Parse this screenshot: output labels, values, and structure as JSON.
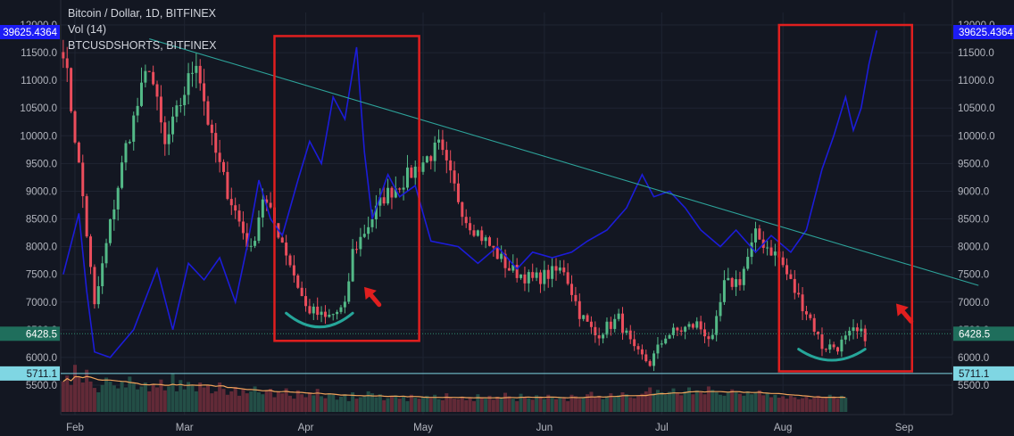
{
  "header": {
    "title": "Bitcoin / Dollar, 1D, BITFINEX",
    "vol_label": "Vol (14)",
    "overlay_label": "BTCUSDSHORTS, BITFINEX"
  },
  "colors": {
    "background": "#131722",
    "grid": "#1f2432",
    "up_candle": "#53b987",
    "down_candle": "#eb4d5c",
    "shorts_line": "#1c1cd9",
    "trendline": "#2da39a",
    "volume_ma": "#f0a35b",
    "highlight_box": "#e01f1f",
    "arrow": "#e01f1f",
    "arc": "#26a69a",
    "price_tag": "#1f6e5c",
    "level_tag": "#7fd6e3",
    "overlay_tag": "#1c1cf5"
  },
  "chart_data": {
    "type": "candlestick",
    "symbol": "BTCUSD",
    "exchange": "BITFINEX",
    "interval": "1D",
    "x_tick_labels": [
      "Feb",
      "Mar",
      "Apr",
      "May",
      "Jun",
      "Jul",
      "Aug",
      "Sep"
    ],
    "y_tick_labels": [
      "12000.0",
      "11500.0",
      "11000.0",
      "10500.0",
      "10000.0",
      "9500.0",
      "9000.0",
      "8500.0",
      "8000.0",
      "7500.0",
      "7000.0",
      "6500.0",
      "6000.0",
      "5500.0"
    ],
    "ylim": [
      5000,
      12200
    ],
    "grid": true,
    "price_tags": {
      "last_price": "6428.5",
      "support_level": "5711.1",
      "shorts_value": "39625.4364"
    },
    "candle_anchors": [
      {
        "date": "2018-01-29",
        "price": 11600
      },
      {
        "date": "2018-02-03",
        "price": 8900
      },
      {
        "date": "2018-02-06",
        "price": 6900
      },
      {
        "date": "2018-02-10",
        "price": 8400
      },
      {
        "date": "2018-02-14",
        "price": 9800
      },
      {
        "date": "2018-02-20",
        "price": 11300
      },
      {
        "date": "2018-02-24",
        "price": 9800
      },
      {
        "date": "2018-03-04",
        "price": 11400
      },
      {
        "date": "2018-03-08",
        "price": 9900
      },
      {
        "date": "2018-03-12",
        "price": 9000
      },
      {
        "date": "2018-03-18",
        "price": 7900
      },
      {
        "date": "2018-03-21",
        "price": 8900
      },
      {
        "date": "2018-03-26",
        "price": 8100
      },
      {
        "date": "2018-04-01",
        "price": 6900
      },
      {
        "date": "2018-04-06",
        "price": 6700
      },
      {
        "date": "2018-04-11",
        "price": 6900
      },
      {
        "date": "2018-04-13",
        "price": 7900
      },
      {
        "date": "2018-04-21",
        "price": 8900
      },
      {
        "date": "2018-04-26",
        "price": 9200
      },
      {
        "date": "2018-05-05",
        "price": 9800
      },
      {
        "date": "2018-05-12",
        "price": 8500
      },
      {
        "date": "2018-05-17",
        "price": 8100
      },
      {
        "date": "2018-05-23",
        "price": 7600
      },
      {
        "date": "2018-05-29",
        "price": 7400
      },
      {
        "date": "2018-06-06",
        "price": 7600
      },
      {
        "date": "2018-06-10",
        "price": 6800
      },
      {
        "date": "2018-06-14",
        "price": 6400
      },
      {
        "date": "2018-06-20",
        "price": 6700
      },
      {
        "date": "2018-06-24",
        "price": 6100
      },
      {
        "date": "2018-06-28",
        "price": 5900
      },
      {
        "date": "2018-07-02",
        "price": 6400
      },
      {
        "date": "2018-07-10",
        "price": 6600
      },
      {
        "date": "2018-07-14",
        "price": 6300
      },
      {
        "date": "2018-07-17",
        "price": 7300
      },
      {
        "date": "2018-07-21",
        "price": 7400
      },
      {
        "date": "2018-07-25",
        "price": 8200
      },
      {
        "date": "2018-07-31",
        "price": 7800
      },
      {
        "date": "2018-08-04",
        "price": 7200
      },
      {
        "date": "2018-08-08",
        "price": 6700
      },
      {
        "date": "2018-08-11",
        "price": 6200
      },
      {
        "date": "2018-08-15",
        "price": 6200
      },
      {
        "date": "2018-08-19",
        "price": 6450
      },
      {
        "date": "2018-08-22",
        "price": 6400
      }
    ],
    "series": [
      {
        "name": "BTCUSDSHORTS, BITFINEX",
        "axis_max_label": "39625.4364",
        "points": [
          {
            "date": "2018-01-29",
            "y": 7500
          },
          {
            "date": "2018-02-02",
            "y": 8600
          },
          {
            "date": "2018-02-04",
            "y": 7200
          },
          {
            "date": "2018-02-06",
            "y": 6100
          },
          {
            "date": "2018-02-10",
            "y": 6000
          },
          {
            "date": "2018-02-16",
            "y": 6500
          },
          {
            "date": "2018-02-22",
            "y": 7600
          },
          {
            "date": "2018-02-26",
            "y": 6500
          },
          {
            "date": "2018-03-02",
            "y": 7700
          },
          {
            "date": "2018-03-06",
            "y": 7400
          },
          {
            "date": "2018-03-10",
            "y": 7800
          },
          {
            "date": "2018-03-14",
            "y": 7000
          },
          {
            "date": "2018-03-17",
            "y": 8000
          },
          {
            "date": "2018-03-20",
            "y": 9200
          },
          {
            "date": "2018-03-23",
            "y": 8500
          },
          {
            "date": "2018-03-26",
            "y": 8200
          },
          {
            "date": "2018-03-30",
            "y": 9200
          },
          {
            "date": "2018-04-02",
            "y": 9900
          },
          {
            "date": "2018-04-05",
            "y": 9500
          },
          {
            "date": "2018-04-08",
            "y": 10700
          },
          {
            "date": "2018-04-11",
            "y": 10300
          },
          {
            "date": "2018-04-14",
            "y": 11600
          },
          {
            "date": "2018-04-16",
            "y": 9700
          },
          {
            "date": "2018-04-18",
            "y": 8500
          },
          {
            "date": "2018-04-22",
            "y": 9300
          },
          {
            "date": "2018-04-25",
            "y": 8900
          },
          {
            "date": "2018-04-29",
            "y": 9100
          },
          {
            "date": "2018-05-03",
            "y": 8100
          },
          {
            "date": "2018-05-10",
            "y": 8000
          },
          {
            "date": "2018-05-15",
            "y": 7700
          },
          {
            "date": "2018-05-20",
            "y": 8000
          },
          {
            "date": "2018-05-25",
            "y": 7600
          },
          {
            "date": "2018-05-29",
            "y": 7900
          },
          {
            "date": "2018-06-03",
            "y": 7800
          },
          {
            "date": "2018-06-08",
            "y": 7900
          },
          {
            "date": "2018-06-12",
            "y": 8100
          },
          {
            "date": "2018-06-17",
            "y": 8300
          },
          {
            "date": "2018-06-22",
            "y": 8700
          },
          {
            "date": "2018-06-26",
            "y": 9300
          },
          {
            "date": "2018-06-29",
            "y": 8900
          },
          {
            "date": "2018-07-03",
            "y": 9000
          },
          {
            "date": "2018-07-07",
            "y": 8700
          },
          {
            "date": "2018-07-11",
            "y": 8300
          },
          {
            "date": "2018-07-16",
            "y": 8000
          },
          {
            "date": "2018-07-20",
            "y": 8300
          },
          {
            "date": "2018-07-25",
            "y": 7900
          },
          {
            "date": "2018-07-29",
            "y": 8200
          },
          {
            "date": "2018-08-03",
            "y": 7900
          },
          {
            "date": "2018-08-07",
            "y": 8300
          },
          {
            "date": "2018-08-11",
            "y": 9400
          },
          {
            "date": "2018-08-14",
            "y": 10000
          },
          {
            "date": "2018-08-17",
            "y": 10700
          },
          {
            "date": "2018-08-19",
            "y": 10100
          },
          {
            "date": "2018-08-21",
            "y": 10500
          },
          {
            "date": "2018-08-23",
            "y": 11300
          },
          {
            "date": "2018-08-25",
            "y": 11900
          }
        ]
      }
    ],
    "trendline": [
      {
        "date": "2018-02-20",
        "y": 11750
      },
      {
        "date": "2018-09-20",
        "y": 7300
      }
    ],
    "support_line_value": 5711.1,
    "highlight_boxes": [
      {
        "from": "2018-03-24",
        "to": "2018-04-30",
        "y_from": 6300,
        "y_to": 11800
      },
      {
        "from": "2018-07-31",
        "to": "2018-09-03",
        "y_from": 5750,
        "y_to": 12000
      }
    ],
    "rounded_bottoms": [
      {
        "from": "2018-03-27",
        "to": "2018-04-13",
        "top": 6800,
        "bottom": 6550
      },
      {
        "from": "2018-08-05",
        "to": "2018-08-22",
        "top": 6150,
        "bottom": 5950
      }
    ],
    "up_arrows": [
      {
        "date": "2018-04-18",
        "y": 7100
      },
      {
        "date": "2018-09-01",
        "y": 6800
      }
    ],
    "volume": {
      "label": "Vol (14)",
      "relative_levels": [
        0.62,
        0.74,
        0.55,
        0.96,
        0.72,
        0.6,
        0.86,
        0.62,
        0.49,
        0.4,
        0.55,
        0.7,
        0.62,
        0.54,
        0.48,
        0.63,
        0.5,
        0.72,
        0.58,
        0.46,
        0.52,
        0.6,
        0.42,
        0.57,
        0.5,
        0.66,
        0.44,
        0.52,
        0.78,
        0.42,
        0.65,
        0.46,
        0.61,
        0.55,
        0.42,
        0.6,
        0.5,
        0.55,
        0.38,
        0.42,
        0.6,
        0.47,
        0.35,
        0.42,
        0.51,
        0.33,
        0.47,
        0.38,
        0.42,
        0.52,
        0.4,
        0.36,
        0.44,
        0.47,
        0.3,
        0.41,
        0.38,
        0.48,
        0.33,
        0.27,
        0.44,
        0.36,
        0.3,
        0.4,
        0.34,
        0.47,
        0.32,
        0.28,
        0.38,
        0.35,
        0.25,
        0.31,
        0.36,
        0.22,
        0.4,
        0.27,
        0.3,
        0.33,
        0.42,
        0.38,
        0.3,
        0.36,
        0.24,
        0.28,
        0.31,
        0.34,
        0.27,
        0.31,
        0.22,
        0.35,
        0.29,
        0.27,
        0.3,
        0.33,
        0.28,
        0.35,
        0.26,
        0.24,
        0.38,
        0.3,
        0.27,
        0.26,
        0.31,
        0.24,
        0.28,
        0.22,
        0.36,
        0.3,
        0.27,
        0.33,
        0.25,
        0.31,
        0.28,
        0.39,
        0.32,
        0.27,
        0.22,
        0.37,
        0.3,
        0.28,
        0.25,
        0.34,
        0.3,
        0.26,
        0.35,
        0.29,
        0.26,
        0.31,
        0.28,
        0.22,
        0.35,
        0.32,
        0.27,
        0.3,
        0.36,
        0.41,
        0.3,
        0.33,
        0.26,
        0.32,
        0.38,
        0.3,
        0.34,
        0.4,
        0.36,
        0.3,
        0.28,
        0.33,
        0.37,
        0.42,
        0.5,
        0.38,
        0.45,
        0.4,
        0.35,
        0.41,
        0.48,
        0.38,
        0.34,
        0.42,
        0.5,
        0.36,
        0.44,
        0.4,
        0.36,
        0.52,
        0.45,
        0.4,
        0.35,
        0.33,
        0.41,
        0.46,
        0.4,
        0.37,
        0.33,
        0.42,
        0.36,
        0.39,
        0.44,
        0.34,
        0.38,
        0.3,
        0.35,
        0.29,
        0.32,
        0.27,
        0.33,
        0.3,
        0.26,
        0.28,
        0.31,
        0.26,
        0.29,
        0.33,
        0.28,
        0.3,
        0.35,
        0.31,
        0.27,
        0.33,
        0.29
      ]
    }
  }
}
